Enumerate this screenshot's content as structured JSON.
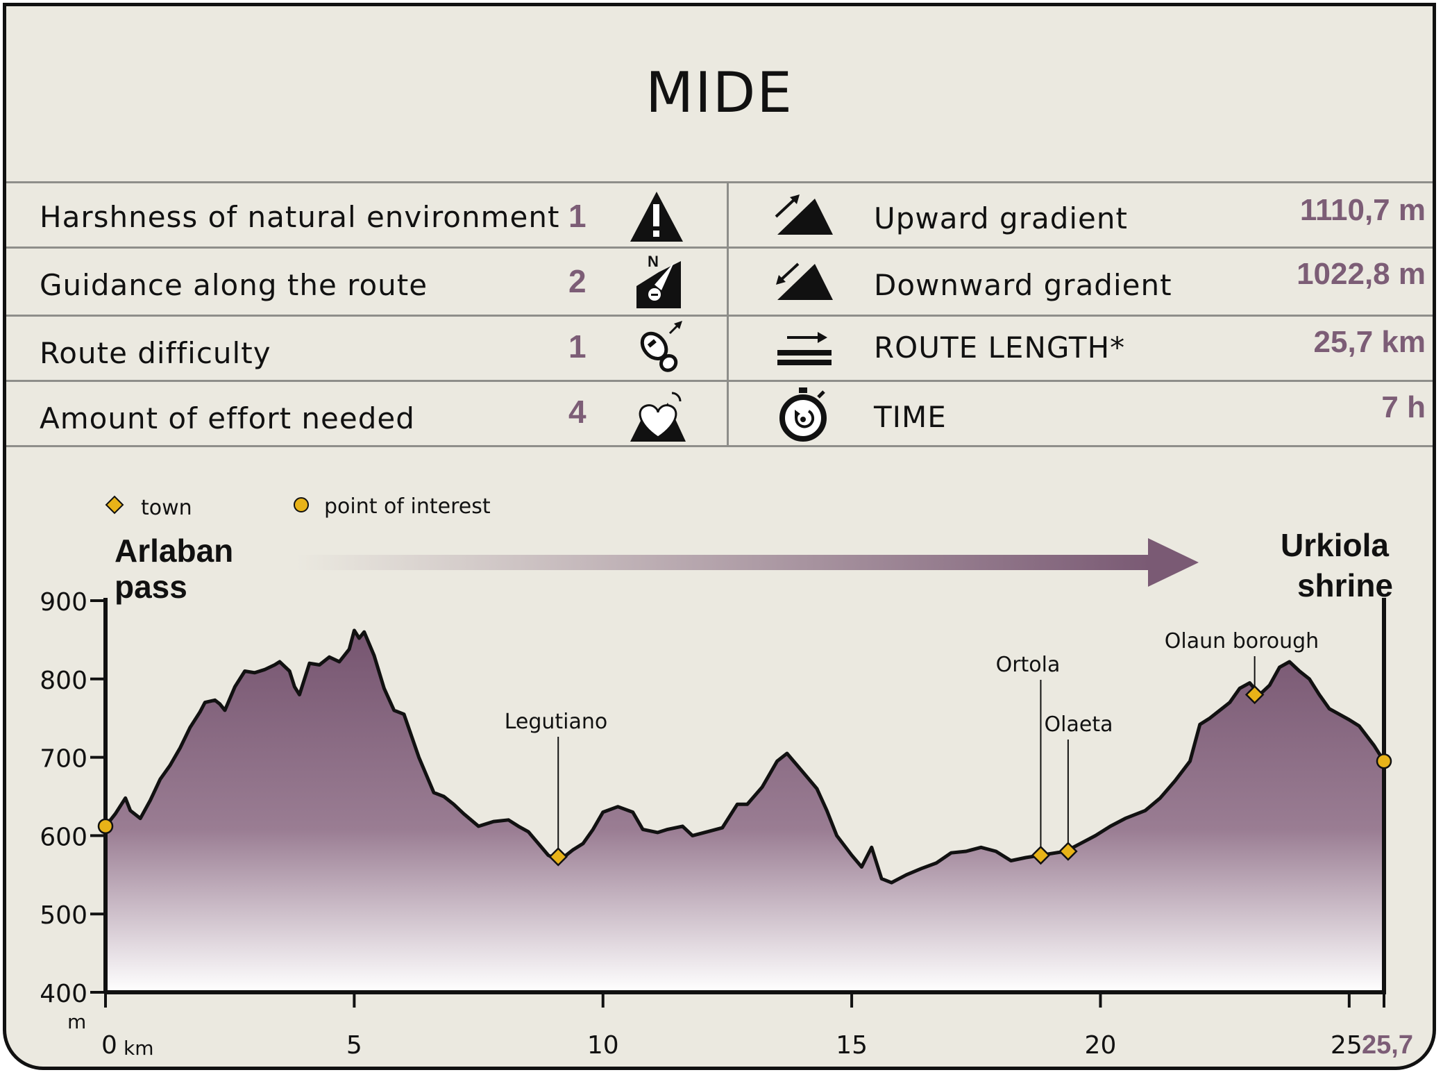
{
  "title": "MIDE",
  "mide": [
    {
      "label": "Harshness of natural environment",
      "score": "1",
      "icon": "warning-mountain-icon"
    },
    {
      "label": "Guidance along the route",
      "score": "2",
      "icon": "compass-signpost-icon"
    },
    {
      "label": "Route difficulty",
      "score": "1",
      "icon": "footprint-icon"
    },
    {
      "label": "Amount of effort needed",
      "score": "4",
      "icon": "heart-mountain-icon"
    }
  ],
  "stats": [
    {
      "label": "Upward gradient",
      "value": "1110,7 m",
      "icon": "upward-gradient-icon"
    },
    {
      "label": "Downward gradient",
      "value": "1022,8 m",
      "icon": "downward-gradient-icon"
    },
    {
      "label": "ROUTE LENGTH*",
      "value": "25,7 km",
      "icon": "route-length-icon"
    },
    {
      "label": "TIME",
      "value": "7 h",
      "icon": "stopwatch-icon"
    }
  ],
  "colors": {
    "accent": "#7c5d76",
    "fill_top": "#765570",
    "fill_bottom": "#ffffff",
    "marker": "#e8b318",
    "background": "#ebe9e0"
  },
  "chart_data": {
    "type": "area",
    "ylabel": "m",
    "xlabel": "km",
    "ylim": [
      400,
      900
    ],
    "xlim": [
      0,
      25.7
    ],
    "yticks": [
      "900",
      "800",
      "700",
      "600",
      "500",
      "400"
    ],
    "xticks": [
      "0",
      "5",
      "10",
      "15",
      "20",
      "25"
    ],
    "x_end_label": "25,7",
    "start_label": [
      "Arlaban",
      "pass"
    ],
    "end_label": [
      "Urkiola",
      "shrine"
    ],
    "legend": {
      "town": "town",
      "poi": "point of interest",
      "placement": "top-left"
    },
    "profile": [
      [
        0.0,
        612
      ],
      [
        0.2,
        628
      ],
      [
        0.4,
        648
      ],
      [
        0.5,
        632
      ],
      [
        0.7,
        622
      ],
      [
        0.9,
        645
      ],
      [
        1.1,
        672
      ],
      [
        1.3,
        690
      ],
      [
        1.5,
        712
      ],
      [
        1.7,
        738
      ],
      [
        1.9,
        758
      ],
      [
        2.0,
        770
      ],
      [
        2.2,
        773
      ],
      [
        2.3,
        768
      ],
      [
        2.4,
        760
      ],
      [
        2.6,
        790
      ],
      [
        2.8,
        810
      ],
      [
        3.0,
        808
      ],
      [
        3.2,
        812
      ],
      [
        3.4,
        818
      ],
      [
        3.5,
        822
      ],
      [
        3.7,
        810
      ],
      [
        3.8,
        790
      ],
      [
        3.9,
        780
      ],
      [
        4.1,
        820
      ],
      [
        4.3,
        818
      ],
      [
        4.5,
        828
      ],
      [
        4.7,
        822
      ],
      [
        4.9,
        838
      ],
      [
        5.0,
        862
      ],
      [
        5.1,
        852
      ],
      [
        5.2,
        860
      ],
      [
        5.4,
        830
      ],
      [
        5.6,
        788
      ],
      [
        5.8,
        760
      ],
      [
        6.0,
        755
      ],
      [
        6.3,
        700
      ],
      [
        6.6,
        655
      ],
      [
        6.8,
        650
      ],
      [
        7.0,
        640
      ],
      [
        7.2,
        628
      ],
      [
        7.5,
        612
      ],
      [
        7.8,
        618
      ],
      [
        8.1,
        620
      ],
      [
        8.3,
        612
      ],
      [
        8.5,
        605
      ],
      [
        8.7,
        590
      ],
      [
        8.9,
        575
      ],
      [
        9.1,
        568
      ],
      [
        9.2,
        572
      ],
      [
        9.4,
        582
      ],
      [
        9.6,
        590
      ],
      [
        9.8,
        608
      ],
      [
        10.0,
        630
      ],
      [
        10.3,
        637
      ],
      [
        10.6,
        630
      ],
      [
        10.8,
        608
      ],
      [
        11.1,
        604
      ],
      [
        11.3,
        608
      ],
      [
        11.6,
        612
      ],
      [
        11.8,
        600
      ],
      [
        12.1,
        605
      ],
      [
        12.4,
        610
      ],
      [
        12.7,
        640
      ],
      [
        12.9,
        640
      ],
      [
        13.2,
        662
      ],
      [
        13.5,
        695
      ],
      [
        13.7,
        705
      ],
      [
        13.9,
        690
      ],
      [
        14.1,
        675
      ],
      [
        14.3,
        660
      ],
      [
        14.5,
        632
      ],
      [
        14.7,
        600
      ],
      [
        15.0,
        575
      ],
      [
        15.2,
        560
      ],
      [
        15.4,
        585
      ],
      [
        15.6,
        545
      ],
      [
        15.8,
        540
      ],
      [
        16.1,
        550
      ],
      [
        16.4,
        558
      ],
      [
        16.7,
        565
      ],
      [
        17.0,
        578
      ],
      [
        17.3,
        580
      ],
      [
        17.6,
        585
      ],
      [
        17.9,
        580
      ],
      [
        18.2,
        568
      ],
      [
        18.5,
        572
      ],
      [
        18.8,
        575
      ],
      [
        19.1,
        578
      ],
      [
        19.3,
        580
      ],
      [
        19.6,
        590
      ],
      [
        19.9,
        600
      ],
      [
        20.2,
        612
      ],
      [
        20.5,
        622
      ],
      [
        20.9,
        632
      ],
      [
        21.2,
        648
      ],
      [
        21.5,
        670
      ],
      [
        21.8,
        695
      ],
      [
        22.0,
        742
      ],
      [
        22.2,
        750
      ],
      [
        22.4,
        760
      ],
      [
        22.6,
        770
      ],
      [
        22.8,
        788
      ],
      [
        23.0,
        795
      ],
      [
        23.2,
        780
      ],
      [
        23.4,
        792
      ],
      [
        23.6,
        815
      ],
      [
        23.8,
        822
      ],
      [
        24.0,
        810
      ],
      [
        24.2,
        800
      ],
      [
        24.4,
        780
      ],
      [
        24.6,
        762
      ],
      [
        24.8,
        755
      ],
      [
        25.0,
        748
      ],
      [
        25.2,
        740
      ],
      [
        25.5,
        715
      ],
      [
        25.7,
        695
      ]
    ],
    "points": [
      {
        "name": "",
        "x": 0.0,
        "y": 612,
        "kind": "point of interest"
      },
      {
        "name": "Legutiano",
        "x": 9.1,
        "y": 573,
        "kind": "town"
      },
      {
        "name": "Ortola",
        "x": 18.8,
        "y": 575,
        "kind": "town"
      },
      {
        "name": "Olaeta",
        "x": 19.35,
        "y": 580,
        "kind": "town"
      },
      {
        "name": "Olaun borough",
        "x": 23.1,
        "y": 780,
        "kind": "town"
      },
      {
        "name": "",
        "x": 25.7,
        "y": 695,
        "kind": "point of interest"
      }
    ]
  }
}
